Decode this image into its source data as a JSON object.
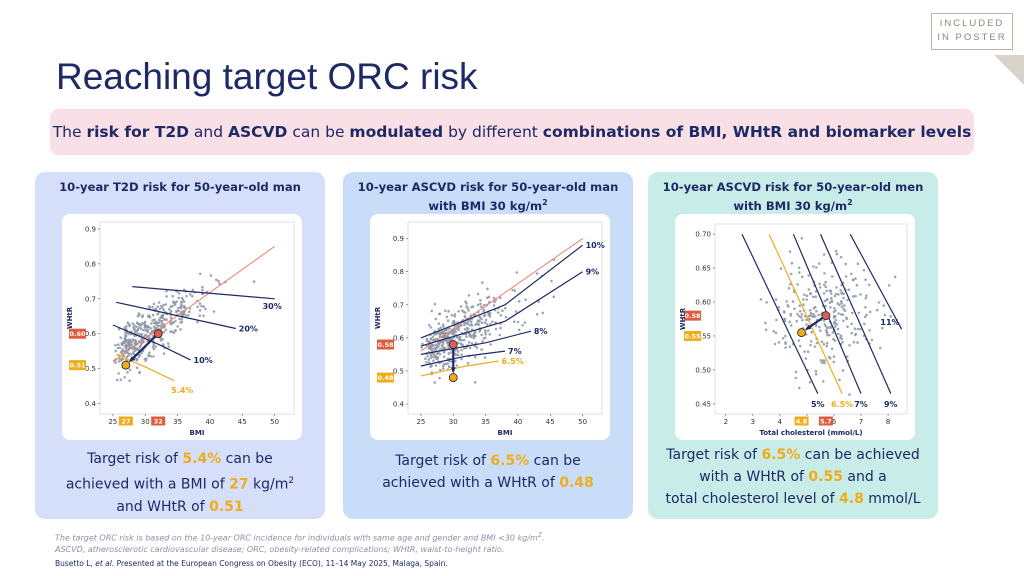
{
  "badge": {
    "line1": "INCLUDED",
    "line2": "IN POSTER"
  },
  "title": "Reaching target ORC risk",
  "banner": {
    "t1": "The ",
    "b1": "risk for T2D",
    "t2": " and ",
    "b2": "ASCVD",
    "t3": " can be ",
    "b3": "modulated",
    "t4": " by different ",
    "b4": "combinations of BMI, WHtR and biomarker levels"
  },
  "colors": {
    "navy": "#1d2a66",
    "orange": "#f0ac1a",
    "red_marker": "#e05a5a",
    "red_label_bg": "#e05a3c",
    "dots": "#8d96a6",
    "trend": "#f08070"
  },
  "panels": [
    {
      "title1": "10-year T2D risk for 50-year-old man",
      "title2": "",
      "title2_sup": "",
      "foot": {
        "l1a": "Target risk of ",
        "l1b": "5.4%",
        "l1c": " can be",
        "l2a": "achieved with a BMI of ",
        "l2b": "27",
        "l2c": " kg/m",
        "l2d": "2",
        "l3a": "and WHtR of ",
        "l3b": "0.51"
      }
    },
    {
      "title1": "10-year ASCVD risk for 50-year-old man",
      "title2": "with BMI 30 kg/m",
      "title2_sup": "2",
      "foot": {
        "l1a": "Target risk of ",
        "l1b": "6.5%",
        "l1c": " can be",
        "l2a": "achieved with a WHtR of ",
        "l2b": "0.48"
      }
    },
    {
      "title1": "10-year ASCVD risk for 50-year-old men",
      "title2": "with BMI 30 kg/m",
      "title2_sup": "2",
      "foot": {
        "l1a": "Target risk of ",
        "l1b": "6.5%",
        "l1c": " can be achieved",
        "l2a": "with a WHtR of ",
        "l2b": "0.55",
        "l2c": " and a",
        "l3a": "total cholesterol level of ",
        "l3b": "4.8",
        "l3c": " mmol/L"
      }
    }
  ],
  "chart_data": [
    {
      "type": "scatter",
      "title": "10-year T2D risk for 50-year-old man",
      "xlabel": "BMI",
      "ylabel": "WHtR",
      "xlim": [
        23,
        53
      ],
      "ylim": [
        0.37,
        0.92
      ],
      "xticks": [
        "25",
        "30",
        "35",
        "40",
        "45",
        "50"
      ],
      "yticks": [
        "0.4",
        "0.5",
        "0.6",
        "0.7",
        "0.8",
        "0.9"
      ],
      "highlight_x": [
        {
          "value": 27,
          "label": "27",
          "style": "target"
        },
        {
          "value": 32,
          "label": "32",
          "style": "current"
        }
      ],
      "highlight_y": [
        {
          "value": 0.6,
          "label": "0.60",
          "style": "current"
        },
        {
          "value": 0.51,
          "label": "0.51",
          "style": "target"
        }
      ],
      "risk_contours": [
        {
          "label": "30%",
          "points": [
            [
              28,
              0.735
            ],
            [
              50,
              0.7
            ]
          ]
        },
        {
          "label": "20%",
          "points": [
            [
              25.5,
              0.69
            ],
            [
              44,
              0.615
            ]
          ]
        },
        {
          "label": "10%",
          "points": [
            [
              25,
              0.625
            ],
            [
              32,
              0.57
            ],
            [
              37,
              0.525
            ]
          ]
        },
        {
          "label": "5.4%",
          "points": [
            [
              25.5,
              0.54
            ],
            [
              30,
              0.505
            ],
            [
              34.5,
              0.465
            ]
          ]
        }
      ],
      "trend": {
        "points": [
          [
            25,
            0.52
          ],
          [
            50,
            0.85
          ]
        ]
      },
      "current_point": [
        32,
        0.6
      ],
      "target_point": [
        27,
        0.51
      ],
      "scatter_cloud": {
        "x_center": 32,
        "y_center": 0.6,
        "n": 420
      }
    },
    {
      "type": "scatter",
      "title": "10-year ASCVD risk for 50-year-old man with BMI 30 kg/m2",
      "xlabel": "BMI",
      "ylabel": "WHtR",
      "xlim": [
        23,
        53
      ],
      "ylim": [
        0.37,
        0.95
      ],
      "xticks": [
        "25",
        "30",
        "35",
        "40",
        "45",
        "50"
      ],
      "yticks": [
        "0.4",
        "0.5",
        "0.6",
        "0.7",
        "0.8",
        "0.9"
      ],
      "highlight_y": [
        {
          "value": 0.58,
          "label": "0.58",
          "style": "current"
        },
        {
          "value": 0.48,
          "label": "0.48",
          "style": "target"
        }
      ],
      "risk_contours": [
        {
          "label": "10%",
          "points": [
            [
              25,
              0.6
            ],
            [
              38,
              0.7
            ],
            [
              50,
              0.88
            ]
          ]
        },
        {
          "label": "9%",
          "points": [
            [
              25,
              0.575
            ],
            [
              38,
              0.65
            ],
            [
              50,
              0.8
            ]
          ]
        },
        {
          "label": "8%",
          "points": [
            [
              25,
              0.55
            ],
            [
              35,
              0.585
            ],
            [
              42,
              0.62
            ]
          ]
        },
        {
          "label": "7%",
          "points": [
            [
              25,
              0.515
            ],
            [
              32,
              0.545
            ],
            [
              38,
              0.56
            ]
          ]
        },
        {
          "label": "6.5%",
          "points": [
            [
              25,
              0.485
            ],
            [
              32,
              0.515
            ],
            [
              37,
              0.53
            ]
          ]
        }
      ],
      "trend": {
        "points": [
          [
            25,
            0.56
          ],
          [
            50,
            0.9
          ]
        ]
      },
      "current_point": [
        30,
        0.58
      ],
      "target_point": [
        30,
        0.48
      ],
      "scatter_cloud": {
        "x_center": 33,
        "y_center": 0.63,
        "n": 420
      }
    },
    {
      "type": "scatter",
      "title": "10-year ASCVD risk for 50-year-old men with BMI 30 kg/m2",
      "xlabel": "Total cholesterol (mmol/L)",
      "ylabel": "WHtR",
      "xlim": [
        1.6,
        8.7
      ],
      "ylim": [
        0.435,
        0.715
      ],
      "xticks": [
        "2",
        "3",
        "4",
        "5",
        "6",
        "7",
        "8"
      ],
      "yticks": [
        "0.45",
        "0.50",
        "0.55",
        "0.60",
        "0.65",
        "0.70"
      ],
      "highlight_x": [
        {
          "value": 4.8,
          "label": "4.8",
          "style": "target"
        },
        {
          "value": 5.7,
          "label": "5.7",
          "style": "current"
        }
      ],
      "highlight_y": [
        {
          "value": 0.58,
          "label": "0.58",
          "style": "current"
        },
        {
          "value": 0.55,
          "label": "0.55",
          "style": "target"
        }
      ],
      "risk_contours": [
        {
          "label": "5%",
          "points": [
            [
              2.6,
              0.7
            ],
            [
              5.4,
              0.465
            ]
          ]
        },
        {
          "label": "6.5%",
          "points": [
            [
              3.6,
              0.7
            ],
            [
              6.3,
              0.465
            ]
          ]
        },
        {
          "label": "7%",
          "points": [
            [
              4.5,
              0.7
            ],
            [
              7.0,
              0.465
            ]
          ]
        },
        {
          "label": "9%",
          "points": [
            [
              5.5,
              0.7
            ],
            [
              8.1,
              0.465
            ]
          ]
        },
        {
          "label": "11%",
          "points": [
            [
              6.6,
              0.7
            ],
            [
              8.5,
              0.56
            ]
          ]
        }
      ],
      "current_point": [
        5.7,
        0.58
      ],
      "target_point": [
        4.8,
        0.555
      ],
      "scatter_cloud": {
        "x_center": 5.7,
        "y_center": 0.58,
        "n": 280
      }
    }
  ],
  "footnote": {
    "line1a": "The target ORC risk is based on the 10-year ORC incidence for individuals with same age and gender and BMI <30 kg/m",
    "line1sup": "2",
    "line1b": ".",
    "line2": "ASCVD, atherosclerotic cardiovascular disease; ORC, obesity-related complications; WHtR, waist-to-height ratio."
  },
  "citation": {
    "author": "Busetto L, ",
    "etal": "et al.",
    "rest": " Presented at the European Congress on Obesity (ECO), 11–14 May 2025, Malaga, Spain."
  }
}
